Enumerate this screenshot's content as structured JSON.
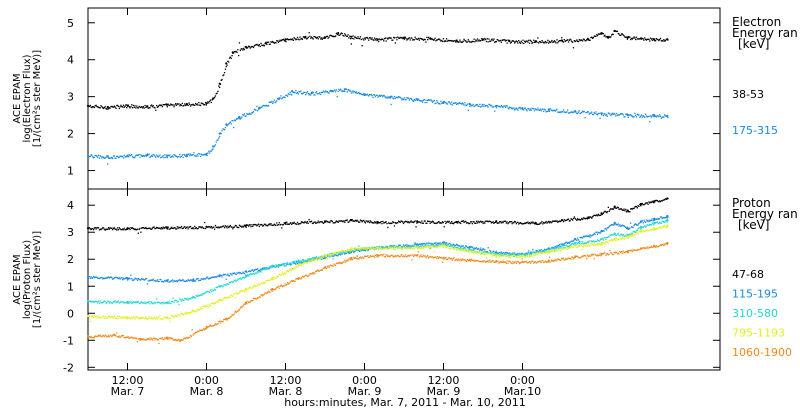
{
  "chart_data": [
    {
      "type": "scatter",
      "panel": "electron",
      "ylabel_lines": [
        "ACE EPAM",
        "log(Electron Flux)",
        "[1/(cm²s ster MeV)]"
      ],
      "legend_title": [
        "Electron",
        "Energy ran",
        "[keV]"
      ],
      "ylim": [
        0.5,
        5.4
      ],
      "y_ticks": [
        1,
        2,
        3,
        4,
        5
      ],
      "series": [
        {
          "name": "38-53",
          "color": "#000000",
          "points": [
            [
              0,
              2.75
            ],
            [
              3,
              2.72
            ],
            [
              6,
              2.76
            ],
            [
              9,
              2.74
            ],
            [
              12,
              2.78
            ],
            [
              15,
              2.8
            ],
            [
              18,
              2.82
            ],
            [
              19,
              2.95
            ],
            [
              20,
              3.35
            ],
            [
              21,
              3.9
            ],
            [
              22,
              4.2
            ],
            [
              24,
              4.35
            ],
            [
              27,
              4.45
            ],
            [
              30,
              4.55
            ],
            [
              33,
              4.62
            ],
            [
              36,
              4.6
            ],
            [
              38,
              4.72
            ],
            [
              40,
              4.62
            ],
            [
              44,
              4.55
            ],
            [
              48,
              4.6
            ],
            [
              52,
              4.58
            ],
            [
              56,
              4.52
            ],
            [
              60,
              4.55
            ],
            [
              64,
              4.5
            ],
            [
              68,
              4.5
            ],
            [
              72,
              4.52
            ],
            [
              76,
              4.55
            ],
            [
              78,
              4.72
            ],
            [
              79,
              4.6
            ],
            [
              80,
              4.78
            ],
            [
              82,
              4.6
            ],
            [
              84,
              4.58
            ],
            [
              86,
              4.55
            ],
            [
              88,
              4.55
            ]
          ]
        },
        {
          "name": "175-315",
          "color": "#1a8ae0",
          "points": [
            [
              0,
              1.4
            ],
            [
              3,
              1.38
            ],
            [
              6,
              1.4
            ],
            [
              9,
              1.42
            ],
            [
              12,
              1.4
            ],
            [
              15,
              1.42
            ],
            [
              18,
              1.45
            ],
            [
              19,
              1.65
            ],
            [
              20,
              2.0
            ],
            [
              21,
              2.25
            ],
            [
              23,
              2.45
            ],
            [
              26,
              2.7
            ],
            [
              29,
              2.95
            ],
            [
              31,
              3.15
            ],
            [
              34,
              3.1
            ],
            [
              37,
              3.15
            ],
            [
              39,
              3.2
            ],
            [
              42,
              3.05
            ],
            [
              46,
              3.0
            ],
            [
              50,
              2.92
            ],
            [
              54,
              2.85
            ],
            [
              58,
              2.8
            ],
            [
              62,
              2.75
            ],
            [
              66,
              2.68
            ],
            [
              70,
              2.65
            ],
            [
              74,
              2.6
            ],
            [
              78,
              2.55
            ],
            [
              82,
              2.5
            ],
            [
              86,
              2.5
            ],
            [
              88,
              2.48
            ]
          ]
        }
      ]
    },
    {
      "type": "scatter",
      "panel": "proton",
      "ylabel_lines": [
        "ACE EPAM",
        "log(Proton Flux)",
        "[1/(cm²s ster MeV)]"
      ],
      "legend_title": [
        "Proton",
        "Energy ran",
        "[keV]"
      ],
      "ylim": [
        -2.1,
        4.6
      ],
      "y_ticks": [
        -2,
        -1,
        0,
        1,
        2,
        3,
        4
      ],
      "series": [
        {
          "name": "47-68",
          "color": "#000000",
          "points": [
            [
              0,
              3.15
            ],
            [
              6,
              3.15
            ],
            [
              12,
              3.18
            ],
            [
              18,
              3.2
            ],
            [
              24,
              3.25
            ],
            [
              30,
              3.35
            ],
            [
              36,
              3.4
            ],
            [
              40,
              3.45
            ],
            [
              44,
              3.38
            ],
            [
              50,
              3.4
            ],
            [
              56,
              3.38
            ],
            [
              62,
              3.4
            ],
            [
              68,
              3.35
            ],
            [
              72,
              3.45
            ],
            [
              76,
              3.55
            ],
            [
              78,
              3.7
            ],
            [
              80,
              3.95
            ],
            [
              82,
              3.8
            ],
            [
              84,
              4.05
            ],
            [
              86,
              4.15
            ],
            [
              88,
              4.25
            ]
          ]
        },
        {
          "name": "115-195",
          "color": "#1a8ae0",
          "points": [
            [
              0,
              1.35
            ],
            [
              6,
              1.3
            ],
            [
              12,
              1.22
            ],
            [
              16,
              1.25
            ],
            [
              20,
              1.4
            ],
            [
              24,
              1.55
            ],
            [
              28,
              1.75
            ],
            [
              32,
              1.9
            ],
            [
              36,
              2.1
            ],
            [
              40,
              2.3
            ],
            [
              44,
              2.45
            ],
            [
              50,
              2.55
            ],
            [
              54,
              2.62
            ],
            [
              58,
              2.45
            ],
            [
              62,
              2.25
            ],
            [
              66,
              2.2
            ],
            [
              70,
              2.4
            ],
            [
              74,
              2.75
            ],
            [
              78,
              3.05
            ],
            [
              80,
              3.35
            ],
            [
              82,
              3.15
            ],
            [
              84,
              3.4
            ],
            [
              86,
              3.5
            ],
            [
              88,
              3.6
            ]
          ]
        },
        {
          "name": "310-580",
          "color": "#22d7d0",
          "points": [
            [
              0,
              0.45
            ],
            [
              6,
              0.42
            ],
            [
              12,
              0.4
            ],
            [
              16,
              0.6
            ],
            [
              20,
              1.0
            ],
            [
              24,
              1.4
            ],
            [
              28,
              1.75
            ],
            [
              32,
              1.95
            ],
            [
              36,
              2.15
            ],
            [
              40,
              2.35
            ],
            [
              44,
              2.45
            ],
            [
              50,
              2.5
            ],
            [
              54,
              2.55
            ],
            [
              58,
              2.35
            ],
            [
              62,
              2.2
            ],
            [
              66,
              2.18
            ],
            [
              70,
              2.35
            ],
            [
              74,
              2.6
            ],
            [
              78,
              2.75
            ],
            [
              80,
              2.95
            ],
            [
              82,
              2.9
            ],
            [
              84,
              3.2
            ],
            [
              86,
              3.35
            ],
            [
              88,
              3.45
            ]
          ]
        },
        {
          "name": "795-1193",
          "color": "#e0ef22",
          "points": [
            [
              0,
              -0.1
            ],
            [
              6,
              -0.15
            ],
            [
              12,
              -0.15
            ],
            [
              16,
              0.1
            ],
            [
              20,
              0.5
            ],
            [
              24,
              0.9
            ],
            [
              28,
              1.3
            ],
            [
              32,
              1.8
            ],
            [
              36,
              2.15
            ],
            [
              40,
              2.4
            ],
            [
              44,
              2.42
            ],
            [
              50,
              2.45
            ],
            [
              54,
              2.5
            ],
            [
              58,
              2.3
            ],
            [
              62,
              2.15
            ],
            [
              66,
              2.12
            ],
            [
              70,
              2.3
            ],
            [
              74,
              2.5
            ],
            [
              78,
              2.6
            ],
            [
              80,
              2.75
            ],
            [
              82,
              2.85
            ],
            [
              84,
              3.05
            ],
            [
              86,
              3.15
            ],
            [
              88,
              3.25
            ]
          ]
        },
        {
          "name": "1060-1900",
          "color": "#ee8a1c",
          "points": [
            [
              0,
              -0.85
            ],
            [
              4,
              -0.8
            ],
            [
              8,
              -0.95
            ],
            [
              12,
              -0.9
            ],
            [
              14,
              -1.0
            ],
            [
              18,
              -0.5
            ],
            [
              21,
              -0.2
            ],
            [
              24,
              0.4
            ],
            [
              28,
              0.9
            ],
            [
              32,
              1.3
            ],
            [
              36,
              1.7
            ],
            [
              40,
              2.05
            ],
            [
              44,
              2.15
            ],
            [
              50,
              2.15
            ],
            [
              54,
              2.05
            ],
            [
              58,
              1.98
            ],
            [
              62,
              1.92
            ],
            [
              66,
              1.9
            ],
            [
              70,
              1.95
            ],
            [
              74,
              2.1
            ],
            [
              78,
              2.2
            ],
            [
              82,
              2.3
            ],
            [
              84,
              2.4
            ],
            [
              86,
              2.5
            ],
            [
              88,
              2.6
            ]
          ]
        }
      ]
    }
  ],
  "xlim": [
    0,
    96
  ],
  "x_ticks": [
    {
      "x": 6,
      "l1": "12:00",
      "l2": "Mar. 7"
    },
    {
      "x": 18,
      "l1": "0:00",
      "l2": "Mar. 8"
    },
    {
      "x": 30,
      "l1": "12:00",
      "l2": "Mar. 8"
    },
    {
      "x": 42,
      "l1": "0:00",
      "l2": "Mar. 9"
    },
    {
      "x": 54,
      "l1": "12:00",
      "l2": "Mar. 9"
    },
    {
      "x": 66,
      "l1": "0:00",
      "l2": "Mar.10"
    }
  ],
  "xlabel": "hours:minutes, Mar. 7, 2011 - Mar. 10, 2011"
}
